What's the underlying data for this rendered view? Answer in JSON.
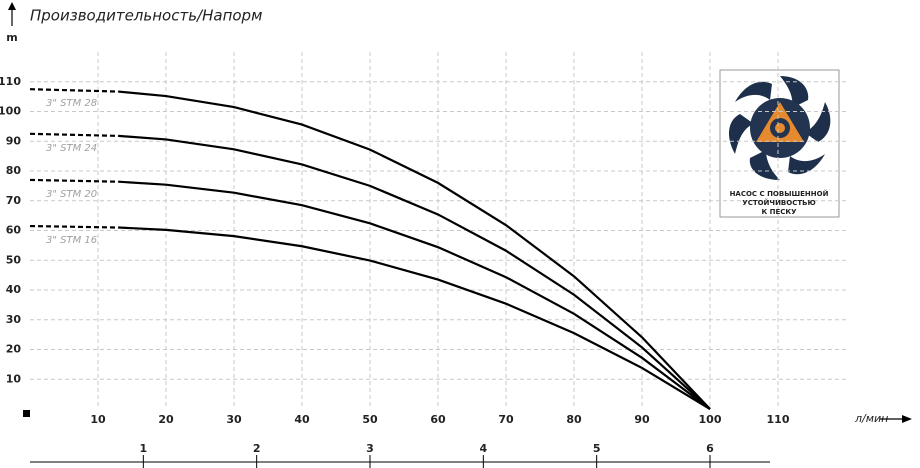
{
  "chart_data": {
    "type": "line",
    "title": "Производительность/Напорм",
    "y_label": "m",
    "x_label": "л/мин",
    "x": [
      0,
      13,
      20,
      30,
      40,
      50,
      60,
      70,
      80,
      90,
      100
    ],
    "series": [
      {
        "name": "3\" STM 28",
        "color": "#000000",
        "dashed_values": [
          107.5,
          106.7,
          null,
          null,
          null,
          null,
          null,
          null,
          null,
          null,
          null
        ],
        "values": [
          null,
          106.7,
          105.2,
          101.5,
          95.6,
          87.2,
          76.0,
          61.8,
          44.6,
          24.1,
          0
        ]
      },
      {
        "name": "3\" STM 24",
        "color": "#000000",
        "dashed_values": [
          92.5,
          91.8,
          null,
          null,
          null,
          null,
          null,
          null,
          null,
          null,
          null
        ],
        "values": [
          null,
          91.8,
          90.6,
          87.3,
          82.2,
          75.0,
          65.4,
          53.2,
          38.4,
          20.7,
          0
        ]
      },
      {
        "name": "3\" STM 20",
        "color": "#000000",
        "dashed_values": [
          77,
          76.4,
          null,
          null,
          null,
          null,
          null,
          null,
          null,
          null,
          null
        ],
        "values": [
          null,
          76.4,
          75.4,
          72.7,
          68.5,
          62.4,
          54.4,
          44.3,
          32.0,
          17.2,
          0
        ]
      },
      {
        "name": "3\" STM 16",
        "color": "#000000",
        "dashed_values": [
          61.5,
          61.0,
          null,
          null,
          null,
          null,
          null,
          null,
          null,
          null,
          null
        ],
        "values": [
          null,
          61.0,
          60.2,
          58.1,
          54.7,
          49.9,
          43.5,
          35.4,
          25.5,
          13.8,
          0
        ]
      }
    ],
    "xlim": [
      0,
      120
    ],
    "ylim": [
      0,
      120
    ],
    "xticks": [
      10,
      20,
      30,
      40,
      50,
      60,
      70,
      80,
      90,
      100,
      110
    ],
    "yticks": [
      10,
      20,
      30,
      40,
      50,
      60,
      70,
      80,
      90,
      100,
      110
    ],
    "x2lim": [
      0,
      7.2
    ],
    "x2ticks": [
      1,
      2,
      3,
      4,
      5,
      6
    ],
    "grid": true,
    "annotation": [
      "НАСОС С ПОВЫШЕННОЙ",
      "УСТОЙЧИВОСТЬЮ",
      "К ПЕСКУ"
    ]
  }
}
